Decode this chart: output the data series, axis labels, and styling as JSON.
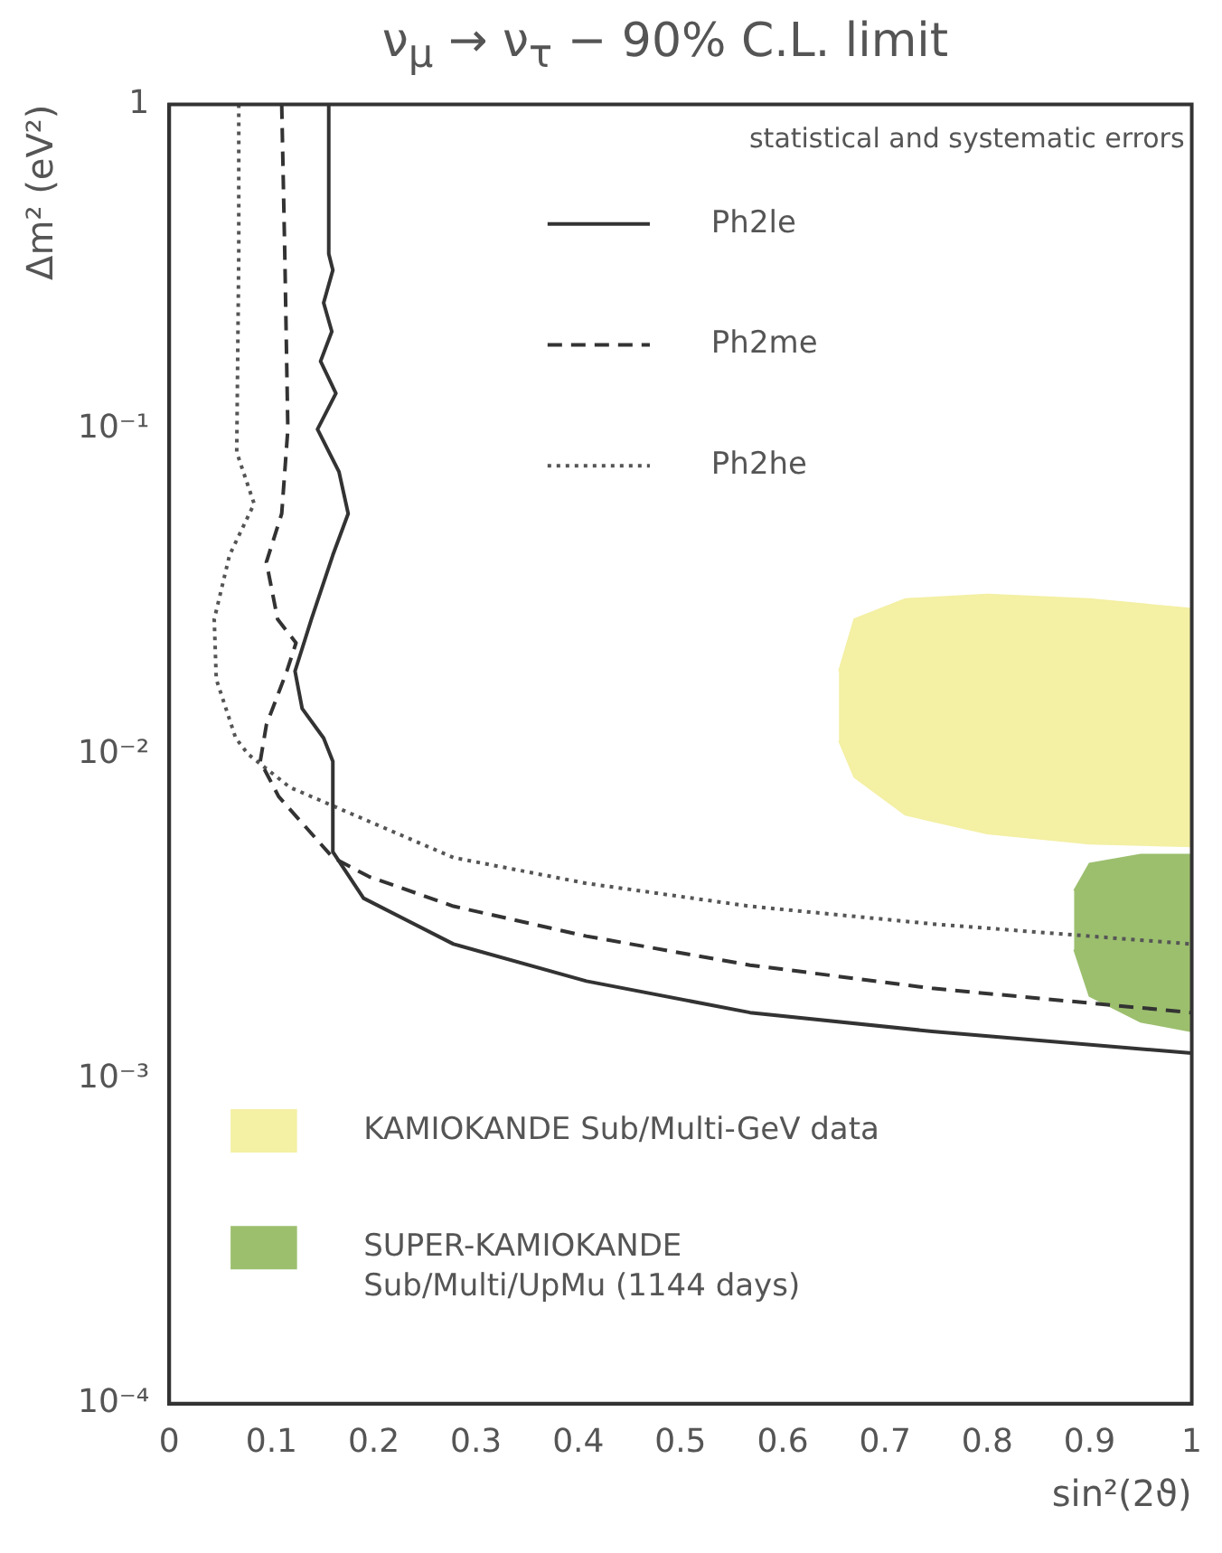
{
  "chart_data": {
    "type": "line",
    "title": "ν$_{μ}$ → ν$_{τ}$ − 90% C.L. limit",
    "xlabel": "sin²(2ϑ)",
    "ylabel": "Δm² (eV²)",
    "log": "y",
    "xlim": [
      0,
      1
    ],
    "ylim": [
      0.0001,
      1
    ],
    "xticks": [
      0,
      0.1,
      0.2,
      0.3,
      0.4,
      0.5,
      0.6,
      0.7,
      0.8,
      0.9,
      1
    ],
    "yticks": [
      {
        "value": 0.0001,
        "label": "10⁻⁴"
      },
      {
        "value": 0.001,
        "label": "10⁻³"
      },
      {
        "value": 0.01,
        "label": "10⁻²"
      },
      {
        "value": 0.1,
        "label": "10⁻¹"
      },
      1
    ],
    "grid": false,
    "legend": "left",
    "marker": "none",
    "annotations": [
      "statistical and systematic errors"
    ],
    "series": [
      {
        "name": "KAMIOKANDE Sub/Multi-GeV data",
        "type": "area",
        "color": "#f4f0a4",
        "x": [
          0.655,
          0.67,
          0.72,
          0.8,
          0.9,
          1,
          1,
          0.9,
          0.8,
          0.72,
          0.67,
          0.655
        ],
        "values": [
          0.018,
          0.026,
          0.03,
          0.031,
          0.03,
          0.028,
          0.0052,
          0.0053,
          0.0057,
          0.0065,
          0.0085,
          0.011
        ]
      },
      {
        "name": "SUPER-KAMIOKANDE Sub/Multi/UpMu (1144 days)",
        "type": "area",
        "color": "#9cbf6e",
        "x": [
          0.885,
          0.9,
          0.95,
          1,
          1,
          0.95,
          0.9,
          0.885
        ],
        "values": [
          0.0038,
          0.0046,
          0.0049,
          0.0049,
          0.0014,
          0.0015,
          0.0018,
          0.0025
        ]
      },
      {
        "name": "Ph2le",
        "line_style": "solid",
        "color": "#333333",
        "x": [
          0.156,
          0.156,
          0.16,
          0.151,
          0.159,
          0.148,
          0.163,
          0.145,
          0.166,
          0.175,
          0.16,
          0.139,
          0.123,
          0.13,
          0.151,
          0.16,
          0.16,
          0.19,
          0.278,
          0.408,
          0.568,
          0.746,
          1
        ],
        "values": [
          1,
          0.347,
          0.309,
          0.245,
          0.2,
          0.162,
          0.129,
          0.1,
          0.074,
          0.055,
          0.041,
          0.026,
          0.018,
          0.0138,
          0.0112,
          0.0095,
          0.005,
          0.0036,
          0.0026,
          0.002,
          0.0016,
          0.0014,
          0.0012
        ]
      },
      {
        "name": "Ph2me",
        "line_style": "dashed",
        "color": "#333333",
        "x": [
          0.11,
          0.113,
          0.116,
          0.11,
          0.095,
          0.106,
          0.124,
          0.115,
          0.095,
          0.089,
          0.107,
          0.16,
          0.195,
          0.278,
          0.408,
          0.568,
          0.746,
          1
        ],
        "values": [
          1,
          0.347,
          0.1,
          0.055,
          0.039,
          0.026,
          0.022,
          0.018,
          0.0123,
          0.0095,
          0.0074,
          0.0048,
          0.0042,
          0.0034,
          0.00275,
          0.00224,
          0.0019,
          0.0016
        ]
      },
      {
        "name": "Ph2he",
        "line_style": "dotted",
        "color": "#555555",
        "x": [
          0.068,
          0.068,
          0.066,
          0.083,
          0.059,
          0.044,
          0.046,
          0.065,
          0.077,
          0.118,
          0.166,
          0.278,
          0.408,
          0.568,
          0.746,
          1
        ],
        "values": [
          1,
          0.347,
          0.085,
          0.059,
          0.041,
          0.026,
          0.017,
          0.0112,
          0.01,
          0.0079,
          0.0068,
          0.0048,
          0.004,
          0.0034,
          0.003,
          0.0026
        ]
      }
    ]
  }
}
